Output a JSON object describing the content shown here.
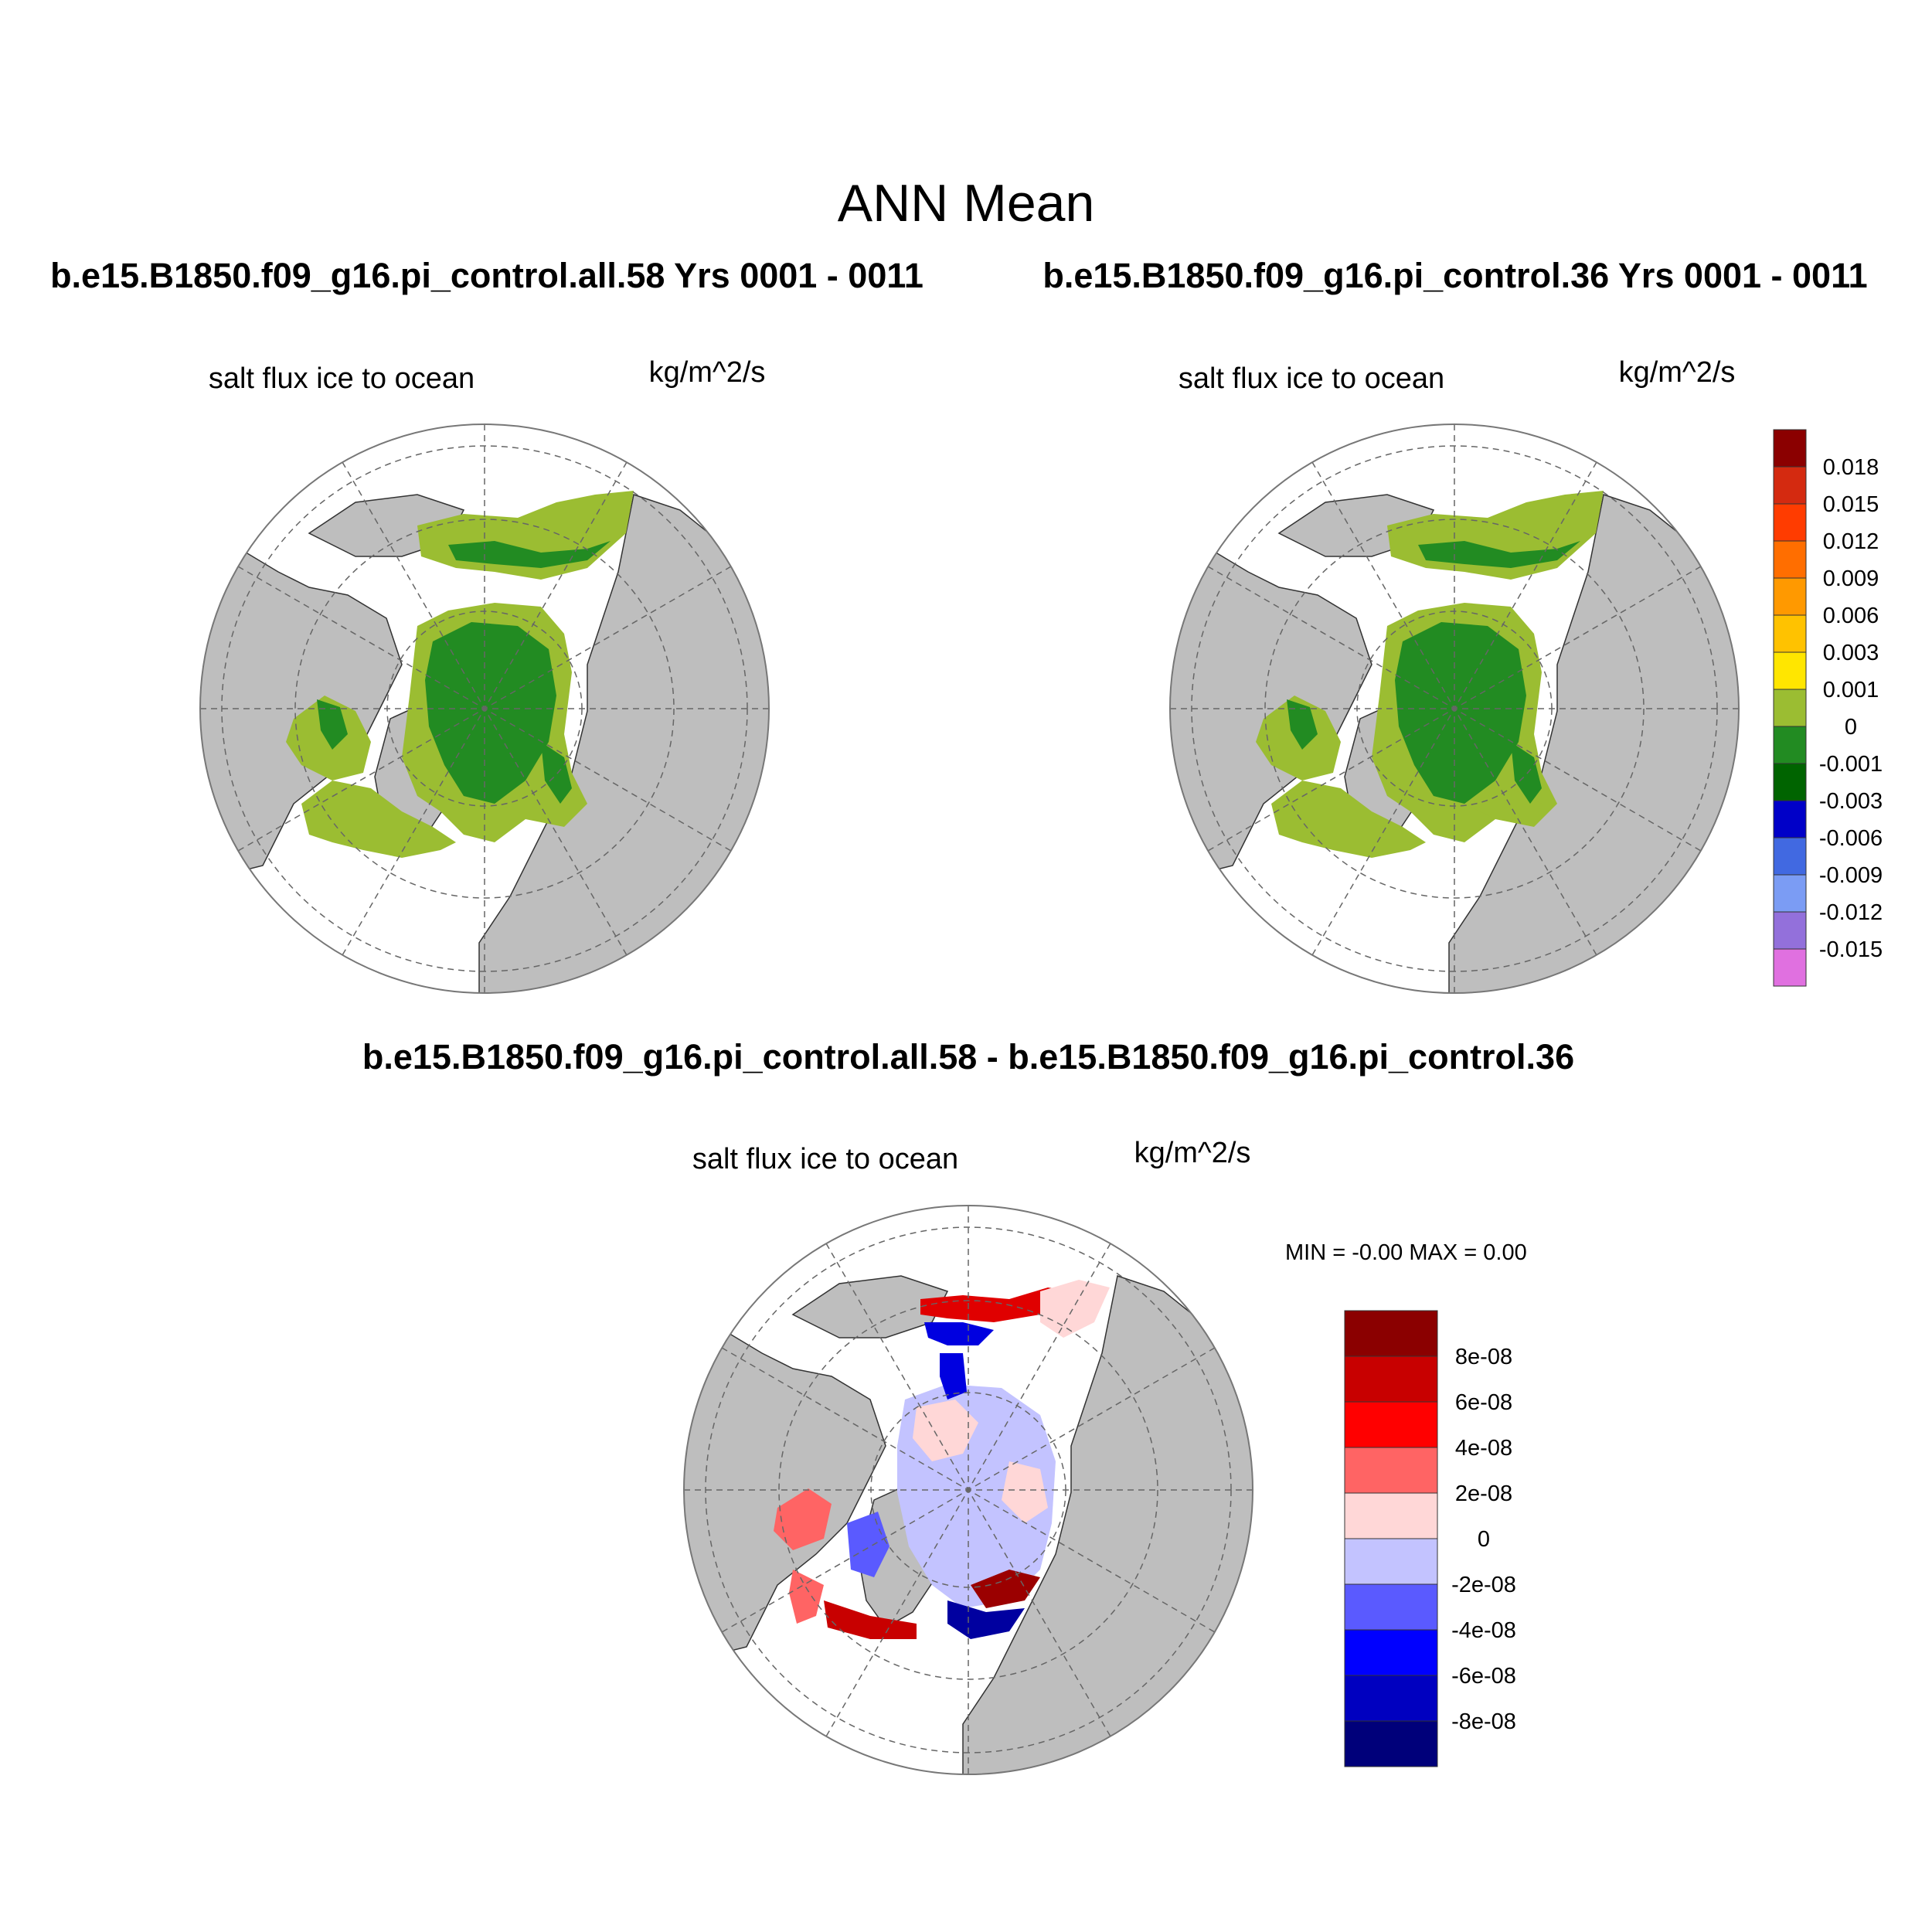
{
  "main_title": "ANN Mean",
  "panels": {
    "top_left": {
      "case_title": "b.e15.B1850.f09_g16.pi_control.all.58  Yrs 0001 - 0011",
      "field_label": "salt flux ice to ocean",
      "units": "kg/m^2/s"
    },
    "top_right": {
      "case_title": "b.e15.B1850.f09_g16.pi_control.36  Yrs 0001 - 0011",
      "field_label": "salt flux ice to ocean",
      "units": "kg/m^2/s"
    },
    "bottom": {
      "case_title": "b.e15.B1850.f09_g16.pi_control.all.58 - b.e15.B1850.f09_g16.pi_control.36",
      "field_label": "salt flux ice to ocean",
      "units": "kg/m^2/s",
      "minmax_text": "MIN =  -0.00 MAX =   0.00"
    }
  },
  "colorbars": {
    "top": {
      "labels": [
        "0.018",
        "0.015",
        "0.012",
        "0.009",
        "0.006",
        "0.003",
        "0.001",
        "0",
        "-0.001",
        "-0.003",
        "-0.006",
        "-0.009",
        "-0.012",
        "-0.015"
      ],
      "colors": [
        "#8b0000",
        "#d42a10",
        "#ff3c00",
        "#ff6e00",
        "#ff9900",
        "#ffc200",
        "#ffe600",
        "#9bbd32",
        "#228b22",
        "#006400",
        "#0000c8",
        "#4169e1",
        "#7b9cf4",
        "#9370db",
        "#e070e0"
      ]
    },
    "bottom": {
      "labels": [
        "8e-08",
        "6e-08",
        "4e-08",
        "2e-08",
        "0",
        "-2e-08",
        "-4e-08",
        "-6e-08",
        "-8e-08"
      ],
      "colors": [
        "#8b0000",
        "#c80000",
        "#ff0000",
        "#ff6464",
        "#ffd7d7",
        "#c3c3ff",
        "#5a5aff",
        "#0000ff",
        "#0000c0",
        "#00007a"
      ]
    }
  },
  "map_colors": {
    "land": "#bebebe",
    "ocean": "#ffffff",
    "ice_positive": "#9bbd32",
    "ice_negative": "#228b22"
  }
}
